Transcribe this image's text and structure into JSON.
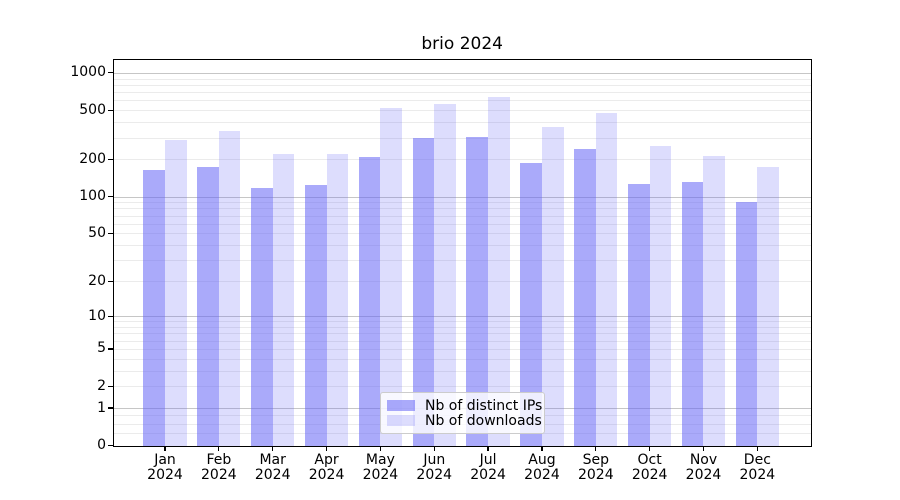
{
  "title": "brio 2024",
  "chart_data": {
    "type": "bar",
    "title": "brio 2024",
    "categories": [
      "Jan 2024",
      "Feb 2024",
      "Mar 2024",
      "Apr 2024",
      "May 2024",
      "Jun 2024",
      "Jul 2024",
      "Aug 2024",
      "Sep 2024",
      "Oct 2024",
      "Nov 2024",
      "Dec 2024"
    ],
    "series": [
      {
        "name": "Nb of distinct IPs",
        "values": [
          164,
          175,
          118,
          124,
          211,
          296,
          301,
          186,
          243,
          126,
          131,
          91
        ],
        "color": "rgba(100,100,245,0.55)"
      },
      {
        "name": "Nb of downloads",
        "values": [
          287,
          340,
          220,
          221,
          518,
          561,
          642,
          364,
          472,
          257,
          214,
          175
        ],
        "color": "rgba(100,100,245,0.22)"
      }
    ],
    "xlabel": "",
    "ylabel": "",
    "yscale": "log10(1+y)",
    "ylim": [
      0,
      1270
    ],
    "yticks": [
      0,
      1,
      2,
      5,
      10,
      20,
      50,
      100,
      200,
      500,
      1000
    ],
    "grid": {
      "minor": [
        0.25,
        0.5,
        0.75,
        2,
        3,
        4,
        5,
        6,
        7,
        8,
        9,
        20,
        30,
        40,
        50,
        60,
        70,
        80,
        90,
        200,
        300,
        400,
        500,
        600,
        700,
        800,
        900
      ],
      "major": [
        1,
        10,
        100,
        1000
      ]
    },
    "legend_position": "inside lower center"
  },
  "colors": {
    "bar_distinct_ips": "rgba(100,100,245,0.55)",
    "bar_downloads": "rgba(100,100,245,0.22)",
    "grid_minor": "#ebebeb",
    "grid_major": "#c6c6c6",
    "spine": "#000000",
    "legend_border": "#cccccc"
  }
}
